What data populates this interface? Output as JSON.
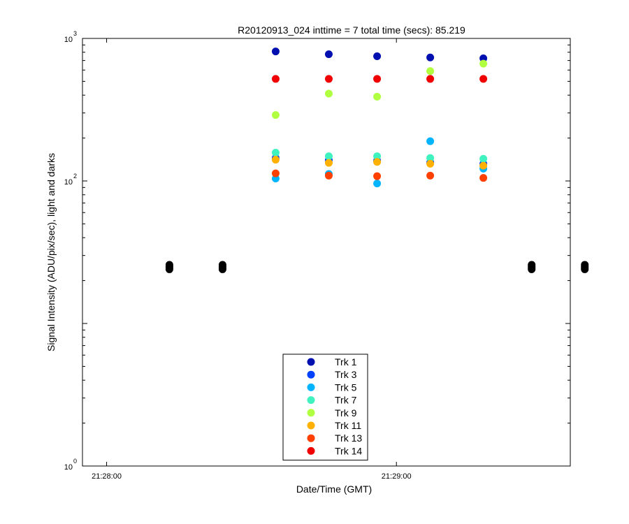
{
  "chart_data": {
    "type": "scatter",
    "title": "R20120913_024 inttime = 7 total time (secs): 85.219",
    "xlabel": "Date/Time (GMT)",
    "ylabel": "Signal Intensity (ADU/pix/sec), light and darks",
    "x_axis": {
      "unit": "seconds after 21:28:00 GMT",
      "range": [
        -5,
        96
      ],
      "ticks": [
        {
          "value": 0,
          "label": "21:28:00"
        },
        {
          "value": 60,
          "label": "21:29:00"
        }
      ]
    },
    "y_axis": {
      "scale": "log",
      "range": [
        1,
        1000
      ],
      "ticks": [
        {
          "exp": "0"
        },
        {
          "exp": "2"
        },
        {
          "exp": "3"
        }
      ],
      "tick_base": "10"
    },
    "grid": false,
    "legend": {
      "position": "bottom-center"
    },
    "series": [
      {
        "name": "Trk 1",
        "color": "#0010b0",
        "x": [
          35,
          46,
          56,
          67,
          78
        ],
        "y": [
          810,
          775,
          750,
          735,
          725
        ]
      },
      {
        "name": "Trk 3",
        "color": "#0040ff",
        "x": [
          35,
          46,
          56,
          67,
          78
        ],
        "y": [
          145,
          140,
          139,
          135,
          132
        ]
      },
      {
        "name": "Trk 5",
        "color": "#00b4ff",
        "x": [
          35,
          46,
          56,
          67,
          78
        ],
        "y": [
          104,
          112,
          96,
          190,
          122
        ]
      },
      {
        "name": "Trk 7",
        "color": "#40f2c0",
        "x": [
          35,
          46,
          56,
          67,
          78
        ],
        "y": [
          158,
          149,
          149,
          145,
          143
        ]
      },
      {
        "name": "Trk 9",
        "color": "#b0ff40",
        "x": [
          35,
          46,
          56,
          67,
          78
        ],
        "y": [
          290,
          410,
          390,
          590,
          665
        ]
      },
      {
        "name": "Trk 11",
        "color": "#ffb000",
        "x": [
          35,
          46,
          56,
          67,
          78
        ],
        "y": [
          141,
          134,
          136,
          132,
          128
        ]
      },
      {
        "name": "Trk 13",
        "color": "#ff4000",
        "x": [
          35,
          46,
          56,
          67,
          78
        ],
        "y": [
          113,
          109,
          108,
          109,
          105
        ]
      },
      {
        "name": "Trk 14",
        "color": "#f00000",
        "x": [
          35,
          46,
          56,
          67,
          78
        ],
        "y": [
          520,
          520,
          520,
          520,
          520
        ]
      }
    ],
    "darks": {
      "color": "#000000",
      "x": [
        13,
        13,
        13,
        13,
        24,
        24,
        24,
        24,
        88,
        88,
        88,
        88,
        99,
        99,
        99,
        99
      ],
      "y": [
        24,
        24.6,
        25.2,
        25.8,
        24,
        24.6,
        25.2,
        25.8,
        24,
        24.6,
        25.2,
        25.8,
        24,
        24.6,
        25.2,
        25.8
      ]
    }
  }
}
